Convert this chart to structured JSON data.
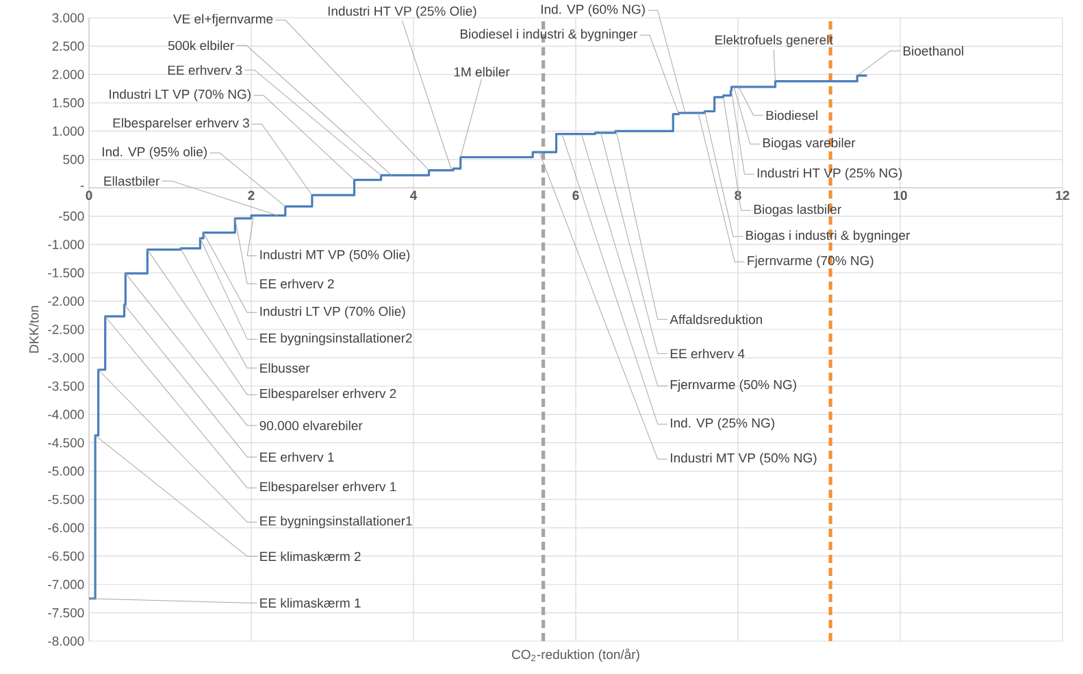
{
  "chart_data": {
    "type": "step",
    "xlabel": "CO$_{2}$-reduktion (ton/år)",
    "ylabel": "DKK/ton",
    "x": [
      0,
      0.077,
      0.115,
      0.2,
      0.435,
      0.45,
      0.72,
      1.13,
      1.37,
      1.41,
      1.8,
      2.0,
      2.42,
      2.75,
      3.27,
      3.6,
      4.19,
      4.49,
      4.58,
      5.47,
      5.76,
      6.24,
      6.49,
      7.2,
      7.27,
      7.59,
      7.71,
      7.82,
      7.91,
      7.92,
      8.46,
      9.47,
      9.59
    ],
    "series": [
      {
        "color": "#4a7ebb",
        "values": [
          -7250,
          -4370,
          -3210,
          -2270,
          -2060,
          -1510,
          -1090,
          -1070,
          -890,
          -790,
          -540,
          -490,
          -330,
          -130,
          140,
          220,
          310,
          340,
          540,
          630,
          950,
          970,
          1000,
          1300,
          1320,
          1350,
          1600,
          1630,
          1710,
          1780,
          1880,
          1980,
          1980
        ]
      }
    ],
    "xlim": [
      0,
      12
    ],
    "xticks": [
      0,
      2,
      4,
      6,
      8,
      10,
      12
    ],
    "ylim": [
      -8000,
      3000
    ],
    "yticks": [
      {
        "value": -8000,
        "label": "-8.000"
      },
      {
        "value": -7500,
        "label": "-7.500"
      },
      {
        "value": -7000,
        "label": "-7.000"
      },
      {
        "value": -6500,
        "label": "-6.500"
      },
      {
        "value": -6000,
        "label": "-6.000"
      },
      {
        "value": -5500,
        "label": "-5.500"
      },
      {
        "value": -5000,
        "label": "-5.000"
      },
      {
        "value": -4500,
        "label": "-4.500"
      },
      {
        "value": -4000,
        "label": "-4.000"
      },
      {
        "value": -3500,
        "label": "-3.500"
      },
      {
        "value": -3000,
        "label": "-3.000"
      },
      {
        "value": -2500,
        "label": "-2.500"
      },
      {
        "value": -2000,
        "label": "-2.000"
      },
      {
        "value": -1500,
        "label": "-1.500"
      },
      {
        "value": -1000,
        "label": "-1.000"
      },
      {
        "value": -500,
        "label": "-500"
      },
      {
        "value": 0,
        "label": "-"
      },
      {
        "value": 500,
        "label": "500"
      },
      {
        "value": 1000,
        "label": "1.000"
      },
      {
        "value": 1500,
        "label": "1.500"
      },
      {
        "value": 2000,
        "label": "2.000"
      },
      {
        "value": 2500,
        "label": "2.500"
      },
      {
        "value": 3000,
        "label": "3.000"
      }
    ],
    "grid": true,
    "ref_lines": [
      {
        "axis": "x",
        "value": 5.6,
        "color": "#a5a5a5",
        "line_style": "dashed"
      },
      {
        "axis": "x",
        "value": 9.14,
        "color": "#f4923a",
        "line_style": "dashed"
      }
    ],
    "annotations": [
      {
        "text": "VE el+fjernvarme",
        "x": 4.19,
        "y": 310
      },
      {
        "text": "Industri HT VP (25% Olie)",
        "x": 4.47,
        "y": 310
      },
      {
        "text": "500k elbiler",
        "x": 3.73,
        "y": 220
      },
      {
        "text": "EE erhverv 3",
        "x": 3.6,
        "y": 220
      },
      {
        "text": "Industri LT VP (70% NG)",
        "x": 3.27,
        "y": 140
      },
      {
        "text": "Elbesparelser erhverv 3",
        "x": 2.75,
        "y": -130
      },
      {
        "text": "Ind. VP (95% olie)",
        "x": 2.42,
        "y": -330
      },
      {
        "text": "Ellastbiler",
        "x": 2.33,
        "y": -490
      },
      {
        "text": "Industri MT VP (50% Olie)",
        "x": 2.03,
        "y": -490
      },
      {
        "text": "EE erhverv 2",
        "x": 1.8,
        "y": -540
      },
      {
        "text": "Industri LT VP (70% Olie)",
        "x": 1.41,
        "y": -790
      },
      {
        "text": "EE bygningsinstallationer2",
        "x": 1.37,
        "y": -890
      },
      {
        "text": "Elbusser",
        "x": 1.13,
        "y": -1070
      },
      {
        "text": "Elbesparelser erhverv 2",
        "x": 0.72,
        "y": -1090
      },
      {
        "text": "90.000 elvarebiler",
        "x": 0.45,
        "y": -1510
      },
      {
        "text": "EE erhverv 1",
        "x": 0.435,
        "y": -2060
      },
      {
        "text": "Elbesparelser erhverv 1",
        "x": 0.2,
        "y": -2270
      },
      {
        "text": "EE bygningsinstallationer1",
        "x": 0.115,
        "y": -3210
      },
      {
        "text": "EE klimaskærm 2",
        "x": 0.077,
        "y": -4370
      },
      {
        "text": "EE klimaskærm 1",
        "x": 0,
        "y": -7250
      },
      {
        "text": "1M elbiler",
        "x": 4.58,
        "y": 540
      },
      {
        "text": "Ind. VP (60% NG)",
        "x": 7.35,
        "y": 1320
      },
      {
        "text": "Biodiesel i industri & bygninger",
        "x": 7.27,
        "y": 1300
      },
      {
        "text": "Elektrofuels generelt",
        "x": 8.46,
        "y": 1880
      },
      {
        "text": "Bioethanol",
        "x": 9.47,
        "y": 1980
      },
      {
        "text": "Biodiesel",
        "x": 8.01,
        "y": 1780
      },
      {
        "text": "Biogas varebiler",
        "x": 7.95,
        "y": 1780
      },
      {
        "text": "Industri HT VP (25% NG)",
        "x": 7.92,
        "y": 1710
      },
      {
        "text": "Biogas lastbiler",
        "x": 7.82,
        "y": 1600
      },
      {
        "text": "Biogas i industri & bygninger",
        "x": 7.59,
        "y": 1350
      },
      {
        "text": "Fjernvarme (70% NG)",
        "x": 7.51,
        "y": 1320
      },
      {
        "text": "Affaldsreduktion",
        "x": 6.5,
        "y": 1000
      },
      {
        "text": "EE erhverv 4",
        "x": 6.31,
        "y": 970
      },
      {
        "text": "Fjernvarme (50% NG)",
        "x": 6.07,
        "y": 950
      },
      {
        "text": "Ind. VP (25% NG)",
        "x": 5.83,
        "y": 950
      },
      {
        "text": "Industri MT VP (50% NG)",
        "x": 5.55,
        "y": 630
      }
    ]
  }
}
